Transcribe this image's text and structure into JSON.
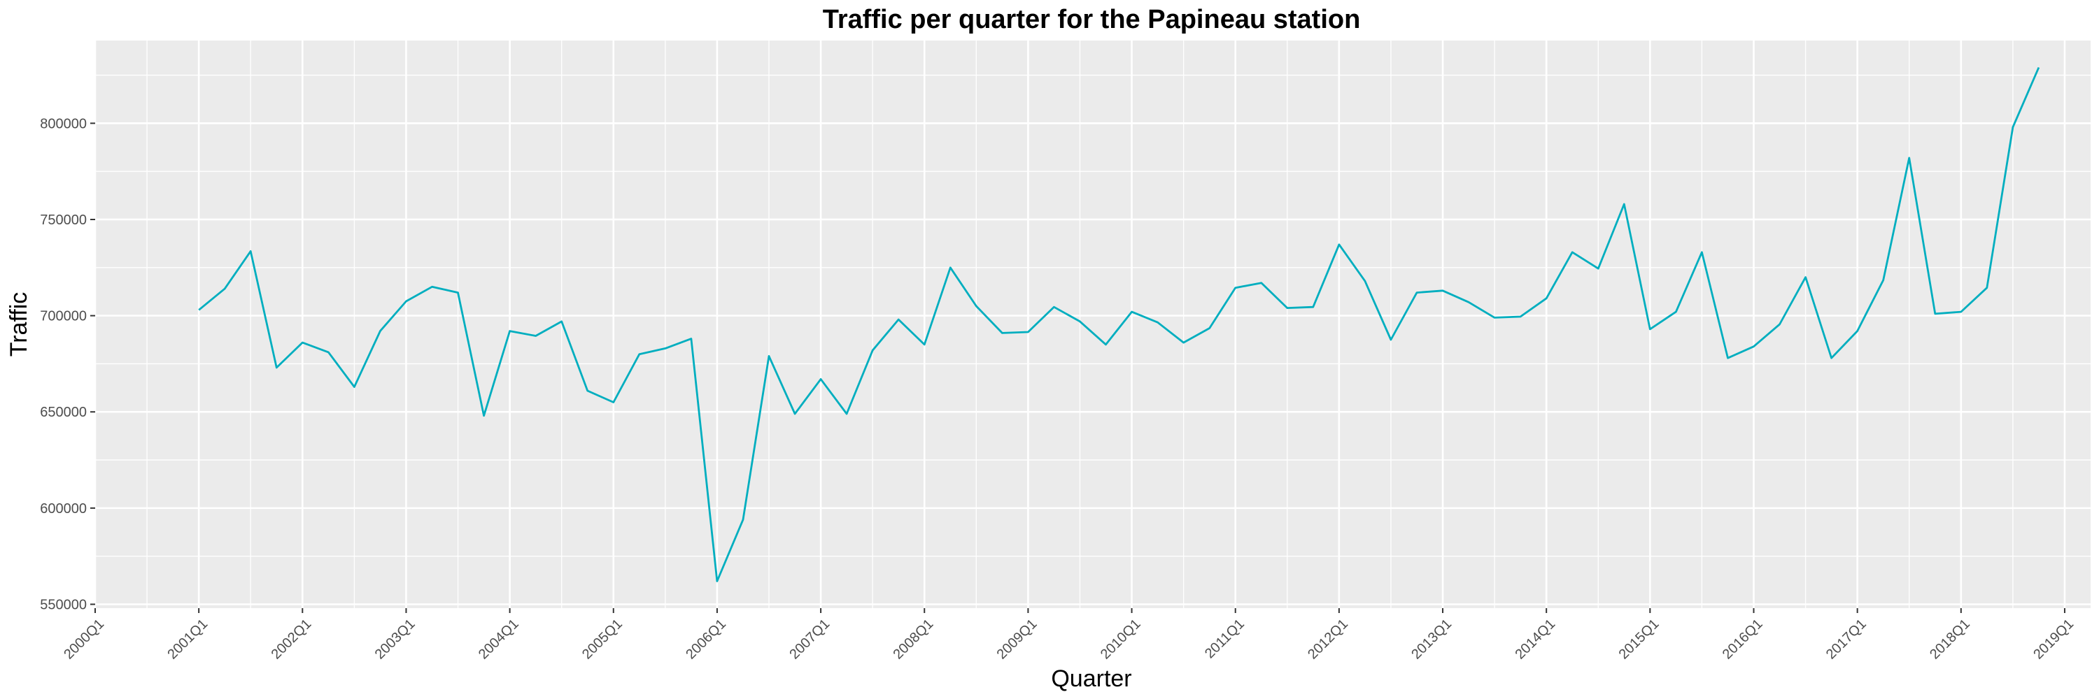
{
  "chart_data": {
    "type": "line",
    "title": "Traffic per quarter for the Papineau station",
    "xlabel": "Quarter",
    "ylabel": "Traffic",
    "x_ticks": [
      "2000Q1",
      "2001Q1",
      "2002Q1",
      "2003Q1",
      "2004Q1",
      "2005Q1",
      "2006Q1",
      "2007Q1",
      "2008Q1",
      "2009Q1",
      "2010Q1",
      "2011Q1",
      "2012Q1",
      "2013Q1",
      "2014Q1",
      "2015Q1",
      "2016Q1",
      "2017Q1",
      "2018Q1",
      "2019Q1"
    ],
    "y_ticks": [
      550000,
      600000,
      650000,
      700000,
      750000,
      800000
    ],
    "ylim": [
      548000,
      843000
    ],
    "x_range_years": [
      2000,
      2019.25
    ],
    "grid": true,
    "colors": {
      "line": "#00aebf",
      "panel": "#ebebeb",
      "grid": "#ffffff"
    },
    "series": [
      {
        "start": "2001Q1",
        "values": [
          703000,
          714000,
          733500,
          673000,
          686000,
          681000,
          663000,
          692000,
          707500,
          715000,
          712000,
          648000,
          692000,
          689500,
          697000,
          661000,
          655000,
          680000,
          683000,
          688000,
          562000,
          594000,
          679000,
          649000,
          667000,
          649000,
          682000,
          698000,
          685000,
          725000,
          705000,
          691000,
          691500,
          704500,
          697000,
          685000,
          702000,
          696500,
          686000,
          693500,
          714500,
          717000,
          704000,
          704500,
          737000,
          718000,
          687500,
          712000,
          713000,
          707000,
          699000,
          699500,
          709000,
          733000,
          724500,
          758000,
          693000,
          702000,
          733000,
          678000,
          684000,
          695500,
          720000,
          678000,
          692000,
          718500,
          782000,
          701000,
          702000,
          714500,
          798000,
          829000
        ]
      }
    ]
  }
}
